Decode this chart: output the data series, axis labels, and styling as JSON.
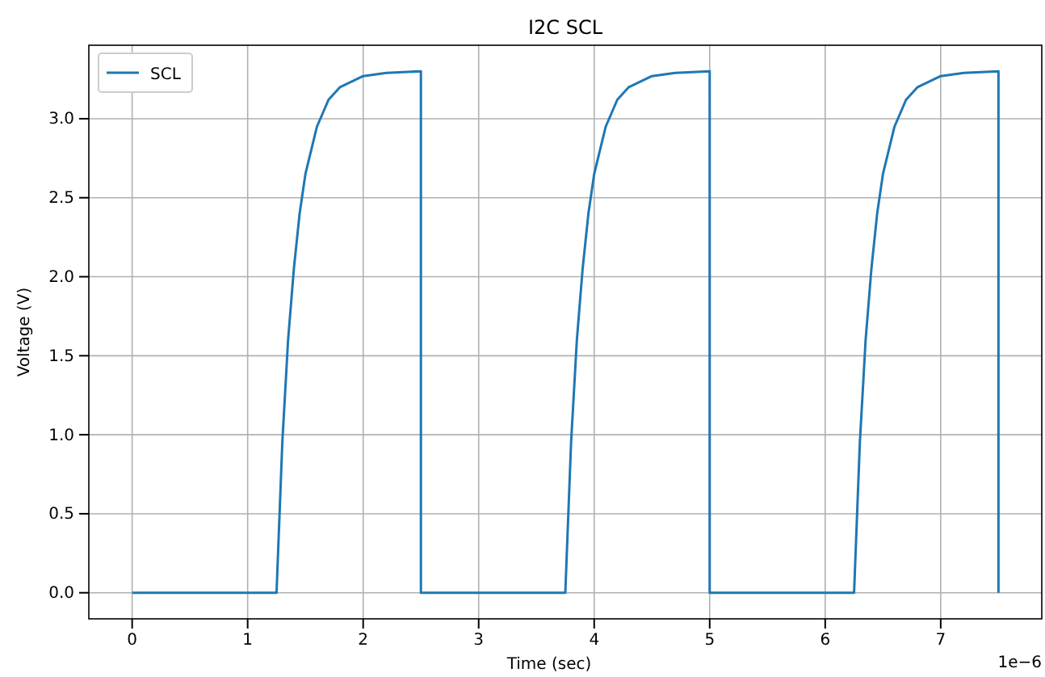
{
  "chart_data": {
    "type": "line",
    "title": "I2C SCL",
    "xlabel": "Time (sec)",
    "ylabel": "Voltage (V)",
    "series": [
      {
        "name": "SCL",
        "color": "#1f77b4",
        "x": [
          0,
          1.25,
          1.3,
          1.35,
          1.4,
          1.45,
          1.5,
          1.6,
          1.7,
          1.8,
          2.0,
          2.2,
          2.5,
          2.5,
          3.75,
          3.8,
          3.85,
          3.9,
          3.95,
          4.0,
          4.1,
          4.2,
          4.3,
          4.5,
          4.7,
          5.0,
          5.0,
          6.25,
          6.3,
          6.35,
          6.4,
          6.45,
          6.5,
          6.6,
          6.7,
          6.8,
          7.0,
          7.2,
          7.5,
          7.5
        ],
        "values": [
          0,
          0,
          0.95,
          1.6,
          2.05,
          2.4,
          2.65,
          2.95,
          3.12,
          3.2,
          3.27,
          3.29,
          3.3,
          0,
          0,
          0.95,
          1.6,
          2.05,
          2.4,
          2.65,
          2.95,
          3.12,
          3.2,
          3.27,
          3.29,
          3.3,
          0,
          0,
          0.95,
          1.6,
          2.05,
          2.4,
          2.65,
          2.95,
          3.12,
          3.2,
          3.27,
          3.29,
          3.3,
          0
        ]
      }
    ],
    "xlim": [
      -0.375,
      7.875
    ],
    "xticks": [
      0,
      1,
      2,
      3,
      4,
      5,
      6,
      7
    ],
    "ylim": [
      -0.165,
      3.465
    ],
    "yticks": [
      {
        "value": 0,
        "label": "0.0"
      },
      {
        "value": 0.5,
        "label": "0.5"
      },
      {
        "value": 1,
        "label": "1.0"
      },
      {
        "value": 1.5,
        "label": "1.5"
      },
      {
        "value": 2,
        "label": "2.0"
      },
      {
        "value": 2.5,
        "label": "2.5"
      },
      {
        "value": 3,
        "label": "3.0"
      }
    ],
    "annotations": [
      "1e−6"
    ],
    "grid": true,
    "legend": "top left",
    "marker": "none",
    "line_style": "solid"
  }
}
